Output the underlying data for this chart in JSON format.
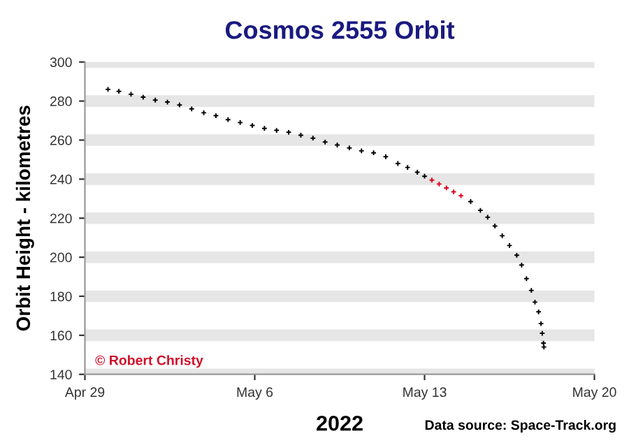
{
  "chart_data": {
    "type": "scatter",
    "title": "Cosmos 2555 Orbit",
    "xlabel": "2022",
    "ylabel": "Orbit Height - kilometres",
    "annotations": [
      "© Robert Christy",
      "Data source: Space-Track.org"
    ],
    "series": [
      {
        "color": "#000000",
        "x": [
          "2022-04-29T22:48",
          "2022-04-30T09:36",
          "2022-04-30T21:36",
          "2022-05-01T09:36",
          "2022-05-01T21:36",
          "2022-05-02T09:36",
          "2022-05-02T21:36",
          "2022-05-03T09:36",
          "2022-05-03T21:36",
          "2022-05-04T09:36",
          "2022-05-04T21:36",
          "2022-05-05T09:36",
          "2022-05-05T21:36",
          "2022-05-06T09:36",
          "2022-05-06T21:36",
          "2022-05-07T09:36",
          "2022-05-07T21:36",
          "2022-05-08T09:36",
          "2022-05-08T21:36",
          "2022-05-09T09:36",
          "2022-05-09T21:36",
          "2022-05-10T09:36",
          "2022-05-10T21:36",
          "2022-05-11T09:36",
          "2022-05-11T21:36",
          "2022-05-12T07:12",
          "2022-05-12T16:48",
          "2022-05-13T00:00",
          "2022-05-14T21:36",
          "2022-05-15T07:12",
          "2022-05-15T14:24",
          "2022-05-15T21:36",
          "2022-05-16T04:48",
          "2022-05-16T12:00",
          "2022-05-16T19:12",
          "2022-05-17T00:00",
          "2022-05-17T04:48",
          "2022-05-17T09:36",
          "2022-05-17T13:12",
          "2022-05-17T16:48",
          "2022-05-17T19:12",
          "2022-05-17T20:24",
          "2022-05-17T21:36",
          "2022-05-17T22:05"
        ],
        "values": [
          286,
          285,
          283.5,
          282,
          280.5,
          279.5,
          278,
          276,
          274,
          272.5,
          270.5,
          269,
          267.5,
          266,
          265,
          264,
          262.5,
          261,
          259,
          257.5,
          256,
          254.5,
          253.5,
          251.5,
          248,
          246,
          243.5,
          241.5,
          228.5,
          224,
          220.5,
          216,
          211,
          206,
          201,
          196,
          189,
          183,
          177,
          172,
          166,
          161,
          156,
          154
        ]
      },
      {
        "color": "#e0001a",
        "x": [
          "2022-05-13T07:12",
          "2022-05-13T14:24",
          "2022-05-13T21:36",
          "2022-05-14T04:48",
          "2022-05-14T12:00"
        ],
        "values": [
          239.5,
          237.5,
          235.5,
          233.5,
          231.5
        ]
      }
    ],
    "xlim": [
      "2022-04-29",
      "2022-05-20"
    ],
    "xticks": [
      {
        "value": "2022-04-29",
        "label": "Apr 29"
      },
      {
        "value": "2022-05-06",
        "label": "May 6"
      },
      {
        "value": "2022-05-13",
        "label": "May 13"
      },
      {
        "value": "2022-05-20",
        "label": "May 20"
      }
    ],
    "ylim": [
      140,
      300
    ],
    "yticks": [
      140,
      160,
      180,
      200,
      220,
      240,
      260,
      280,
      300
    ],
    "grid": "y",
    "marker": "cross",
    "legend": false
  }
}
